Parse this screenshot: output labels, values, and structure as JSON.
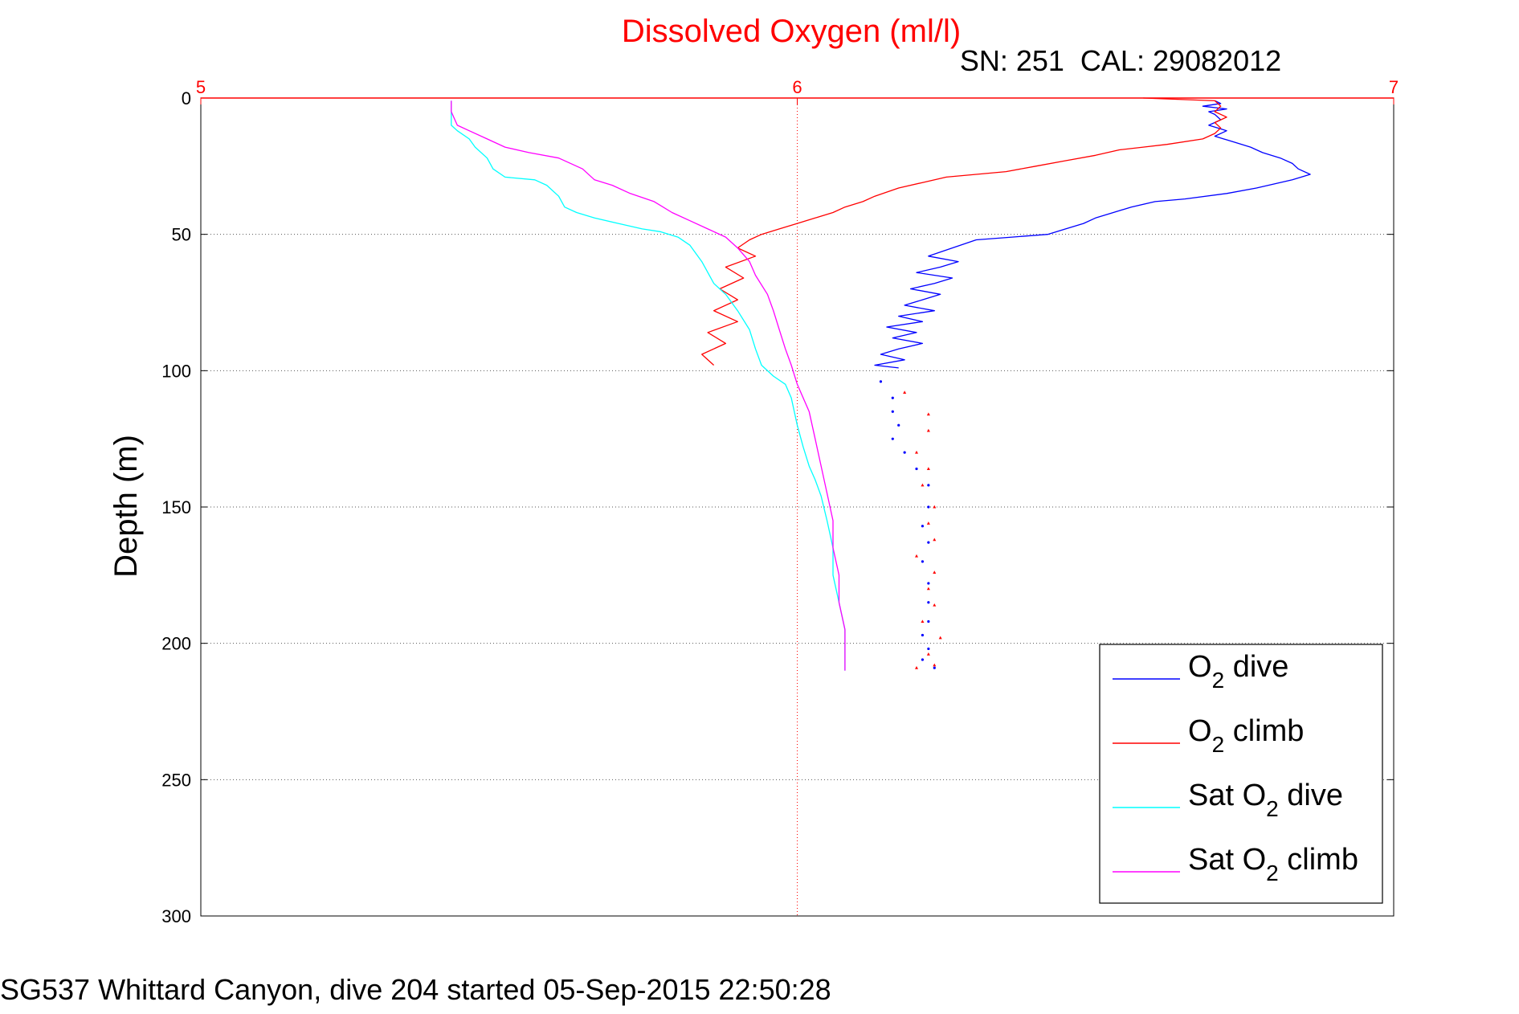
{
  "chart_data": {
    "type": "line",
    "title": "Dissolved Oxygen (ml/l)",
    "subtitle": "SN: 251  CAL: 29082012",
    "footer": "SG537 Whittard Canyon, dive 204 started 05-Sep-2015 22:50:28",
    "xlabel": "",
    "ylabel": "Depth (m)",
    "xlim": [
      5,
      7
    ],
    "ylim": [
      0,
      300
    ],
    "y_reversed": true,
    "x_axis_location": "top",
    "x_ticks": [
      5,
      6,
      7
    ],
    "y_ticks": [
      0,
      50,
      100,
      150,
      200,
      250,
      300
    ],
    "grid": true,
    "legend_position": "bottom-right",
    "colors": {
      "title": "#ff0000",
      "x_axis": "#ff0000",
      "y_axis": "#000000",
      "grid": "#555555"
    },
    "series": [
      {
        "name": "O2 dive",
        "legend": {
          "pre": "O",
          "sub": "2",
          "post": " dive"
        },
        "color": "#0000ff",
        "marker": "dot",
        "line_points": [
          [
            6.7,
            1
          ],
          [
            6.71,
            2
          ],
          [
            6.68,
            3
          ],
          [
            6.72,
            4
          ],
          [
            6.69,
            5
          ],
          [
            6.7,
            6
          ],
          [
            6.71,
            8
          ],
          [
            6.69,
            10
          ],
          [
            6.72,
            12
          ],
          [
            6.7,
            14
          ],
          [
            6.73,
            16
          ],
          [
            6.76,
            18
          ],
          [
            6.78,
            20
          ],
          [
            6.81,
            22
          ],
          [
            6.83,
            24
          ],
          [
            6.84,
            26
          ],
          [
            6.86,
            28
          ],
          [
            6.83,
            30
          ],
          [
            6.77,
            33
          ],
          [
            6.72,
            35
          ],
          [
            6.65,
            37
          ],
          [
            6.6,
            38
          ],
          [
            6.56,
            40
          ],
          [
            6.53,
            42
          ],
          [
            6.5,
            44
          ],
          [
            6.48,
            46
          ],
          [
            6.45,
            48
          ],
          [
            6.42,
            50
          ],
          [
            6.36,
            51
          ],
          [
            6.3,
            52
          ],
          [
            6.26,
            55
          ],
          [
            6.22,
            58
          ],
          [
            6.27,
            60
          ],
          [
            6.24,
            62
          ],
          [
            6.2,
            64
          ],
          [
            6.26,
            66
          ],
          [
            6.23,
            68
          ],
          [
            6.19,
            70
          ],
          [
            6.24,
            72
          ],
          [
            6.21,
            74
          ],
          [
            6.18,
            76
          ],
          [
            6.23,
            78
          ],
          [
            6.17,
            80
          ],
          [
            6.21,
            82
          ],
          [
            6.15,
            84
          ],
          [
            6.2,
            86
          ],
          [
            6.16,
            88
          ],
          [
            6.21,
            90
          ],
          [
            6.17,
            92
          ],
          [
            6.14,
            94
          ],
          [
            6.18,
            96
          ],
          [
            6.13,
            98
          ],
          [
            6.17,
            99
          ]
        ],
        "dot_points": [
          [
            6.14,
            104
          ],
          [
            6.16,
            110
          ],
          [
            6.16,
            115
          ],
          [
            6.17,
            120
          ],
          [
            6.16,
            125
          ],
          [
            6.18,
            130
          ],
          [
            6.2,
            136
          ],
          [
            6.22,
            142
          ],
          [
            6.22,
            150
          ],
          [
            6.21,
            157
          ],
          [
            6.22,
            163
          ],
          [
            6.21,
            170
          ],
          [
            6.22,
            178
          ],
          [
            6.22,
            185
          ],
          [
            6.22,
            192
          ],
          [
            6.21,
            197
          ],
          [
            6.22,
            202
          ],
          [
            6.21,
            206
          ],
          [
            6.23,
            209
          ]
        ]
      },
      {
        "name": "O2 climb",
        "legend": {
          "pre": "O",
          "sub": "2",
          "post": " climb"
        },
        "color": "#ff0000",
        "marker": "triangle",
        "line_points": [
          [
            6.58,
            0
          ],
          [
            6.7,
            1
          ],
          [
            6.71,
            3
          ],
          [
            6.7,
            5
          ],
          [
            6.72,
            7
          ],
          [
            6.7,
            9
          ],
          [
            6.71,
            11
          ],
          [
            6.7,
            13
          ],
          [
            6.68,
            15
          ],
          [
            6.62,
            17
          ],
          [
            6.58,
            18
          ],
          [
            6.54,
            19
          ],
          [
            6.5,
            21
          ],
          [
            6.45,
            23
          ],
          [
            6.4,
            25
          ],
          [
            6.35,
            27
          ],
          [
            6.3,
            28
          ],
          [
            6.25,
            29
          ],
          [
            6.21,
            31
          ],
          [
            6.17,
            33
          ],
          [
            6.13,
            36
          ],
          [
            6.11,
            38
          ],
          [
            6.08,
            40
          ],
          [
            6.06,
            42
          ],
          [
            6.03,
            44
          ],
          [
            6.0,
            46
          ],
          [
            5.97,
            48
          ],
          [
            5.94,
            50
          ],
          [
            5.92,
            52
          ],
          [
            5.9,
            55
          ],
          [
            5.93,
            58
          ],
          [
            5.88,
            62
          ],
          [
            5.91,
            66
          ],
          [
            5.87,
            70
          ],
          [
            5.9,
            74
          ],
          [
            5.86,
            78
          ],
          [
            5.9,
            82
          ],
          [
            5.85,
            86
          ],
          [
            5.88,
            90
          ],
          [
            5.84,
            94
          ],
          [
            5.86,
            98
          ]
        ],
        "dot_points": [
          [
            6.18,
            108
          ],
          [
            6.22,
            116
          ],
          [
            6.22,
            122
          ],
          [
            6.2,
            130
          ],
          [
            6.22,
            136
          ],
          [
            6.21,
            142
          ],
          [
            6.23,
            150
          ],
          [
            6.22,
            156
          ],
          [
            6.23,
            162
          ],
          [
            6.2,
            168
          ],
          [
            6.23,
            174
          ],
          [
            6.22,
            180
          ],
          [
            6.23,
            186
          ],
          [
            6.21,
            192
          ],
          [
            6.24,
            198
          ],
          [
            6.22,
            204
          ],
          [
            6.23,
            208
          ],
          [
            6.2,
            209
          ]
        ]
      },
      {
        "name": "Sat O2 dive",
        "legend": {
          "pre": "Sat O",
          "sub": "2",
          "post": " dive"
        },
        "color": "#00ffff",
        "marker": "none",
        "line_points": [
          [
            5.42,
            1
          ],
          [
            5.42,
            5
          ],
          [
            5.42,
            10
          ],
          [
            5.43,
            12
          ],
          [
            5.45,
            15
          ],
          [
            5.46,
            18
          ],
          [
            5.48,
            22
          ],
          [
            5.49,
            26
          ],
          [
            5.51,
            29
          ],
          [
            5.56,
            30
          ],
          [
            5.58,
            32
          ],
          [
            5.6,
            36
          ],
          [
            5.61,
            40
          ],
          [
            5.63,
            42
          ],
          [
            5.66,
            44
          ],
          [
            5.7,
            46
          ],
          [
            5.74,
            48
          ],
          [
            5.77,
            49
          ],
          [
            5.8,
            51
          ],
          [
            5.82,
            54
          ],
          [
            5.84,
            60
          ],
          [
            5.86,
            68
          ],
          [
            5.88,
            72
          ],
          [
            5.9,
            78
          ],
          [
            5.92,
            85
          ],
          [
            5.93,
            92
          ],
          [
            5.94,
            98
          ],
          [
            5.96,
            102
          ],
          [
            5.98,
            105
          ],
          [
            5.99,
            110
          ],
          [
            6.0,
            120
          ],
          [
            6.01,
            128
          ],
          [
            6.02,
            135
          ],
          [
            6.03,
            140
          ],
          [
            6.04,
            146
          ],
          [
            6.05,
            155
          ],
          [
            6.06,
            165
          ],
          [
            6.06,
            175
          ],
          [
            6.07,
            185
          ],
          [
            6.08,
            195
          ],
          [
            6.08,
            205
          ],
          [
            6.08,
            210
          ]
        ]
      },
      {
        "name": "Sat O2 climb",
        "legend": {
          "pre": "Sat O",
          "sub": "2",
          "post": " climb"
        },
        "color": "#ff00ff",
        "marker": "none",
        "line_points": [
          [
            5.42,
            1
          ],
          [
            5.42,
            5
          ],
          [
            5.43,
            10
          ],
          [
            5.45,
            12
          ],
          [
            5.48,
            15
          ],
          [
            5.51,
            18
          ],
          [
            5.55,
            20
          ],
          [
            5.6,
            22
          ],
          [
            5.64,
            26
          ],
          [
            5.66,
            30
          ],
          [
            5.69,
            32
          ],
          [
            5.72,
            35
          ],
          [
            5.76,
            38
          ],
          [
            5.79,
            42
          ],
          [
            5.82,
            45
          ],
          [
            5.85,
            48
          ],
          [
            5.88,
            51
          ],
          [
            5.9,
            55
          ],
          [
            5.92,
            60
          ],
          [
            5.93,
            65
          ],
          [
            5.95,
            72
          ],
          [
            5.96,
            78
          ],
          [
            5.97,
            85
          ],
          [
            5.98,
            92
          ],
          [
            5.99,
            98
          ],
          [
            6.0,
            105
          ],
          [
            6.02,
            115
          ],
          [
            6.03,
            125
          ],
          [
            6.04,
            135
          ],
          [
            6.05,
            145
          ],
          [
            6.06,
            155
          ],
          [
            6.06,
            165
          ],
          [
            6.07,
            175
          ],
          [
            6.07,
            185
          ],
          [
            6.08,
            195
          ],
          [
            6.08,
            205
          ],
          [
            6.08,
            210
          ]
        ]
      }
    ]
  }
}
